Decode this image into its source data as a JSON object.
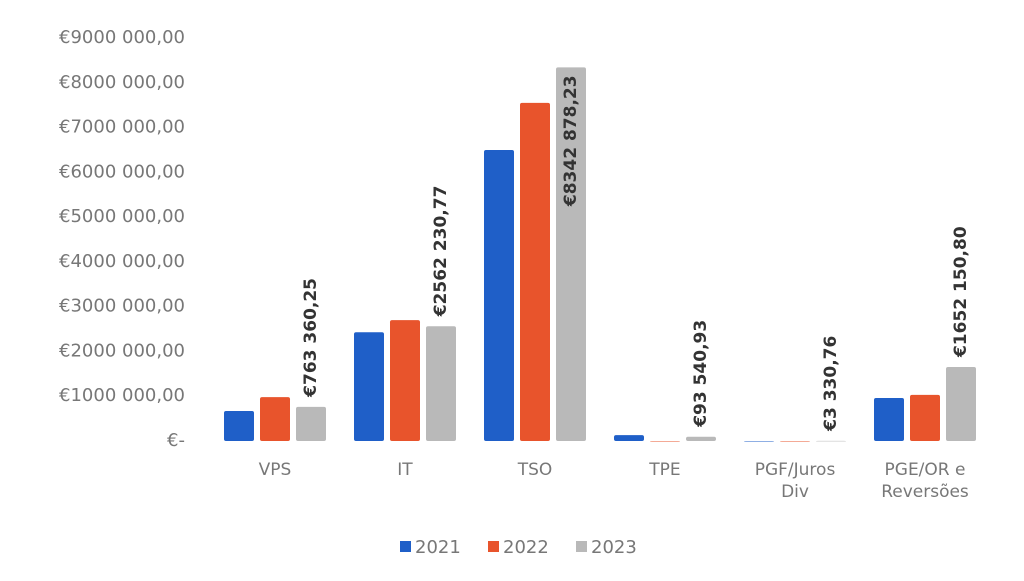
{
  "chart_data": {
    "type": "bar",
    "categories": [
      "VPS",
      "IT",
      "TSO",
      "TPE",
      "PGF/Juros Div",
      "PGE/OR e Reversões"
    ],
    "series": [
      {
        "name": "2021",
        "color": "#1f5fc8",
        "values": [
          670000,
          2430000,
          6500000,
          130000,
          0,
          960000
        ]
      },
      {
        "name": "2022",
        "color": "#e8542c",
        "values": [
          980000,
          2700000,
          7550000,
          0,
          0,
          1030000
        ]
      },
      {
        "name": "2023",
        "color": "#b9b9b9",
        "values": [
          763360.25,
          2562230.77,
          8342878.23,
          93540.93,
          3330.76,
          1652150.8
        ],
        "value_labels": [
          "€763 360,25",
          "€2562 230,77",
          "€8342 878,23",
          "€93 540,93",
          "€3 330,76",
          "€1652 150,80"
        ]
      }
    ],
    "ylim": [
      0,
      9000000
    ],
    "yticks": [
      {
        "value": 0,
        "label": "€-"
      },
      {
        "value": 1000000,
        "label": "€1000 000,00"
      },
      {
        "value": 2000000,
        "label": "€2000 000,00"
      },
      {
        "value": 3000000,
        "label": "€3000 000,00"
      },
      {
        "value": 4000000,
        "label": "€4000 000,00"
      },
      {
        "value": 5000000,
        "label": "€5000 000,00"
      },
      {
        "value": 6000000,
        "label": "€6000 000,00"
      },
      {
        "value": 7000000,
        "label": "€7000 000,00"
      },
      {
        "value": 8000000,
        "label": "€8000 000,00"
      },
      {
        "value": 9000000,
        "label": "€9000 000,00"
      }
    ],
    "grid": false,
    "legend": "bottom"
  }
}
